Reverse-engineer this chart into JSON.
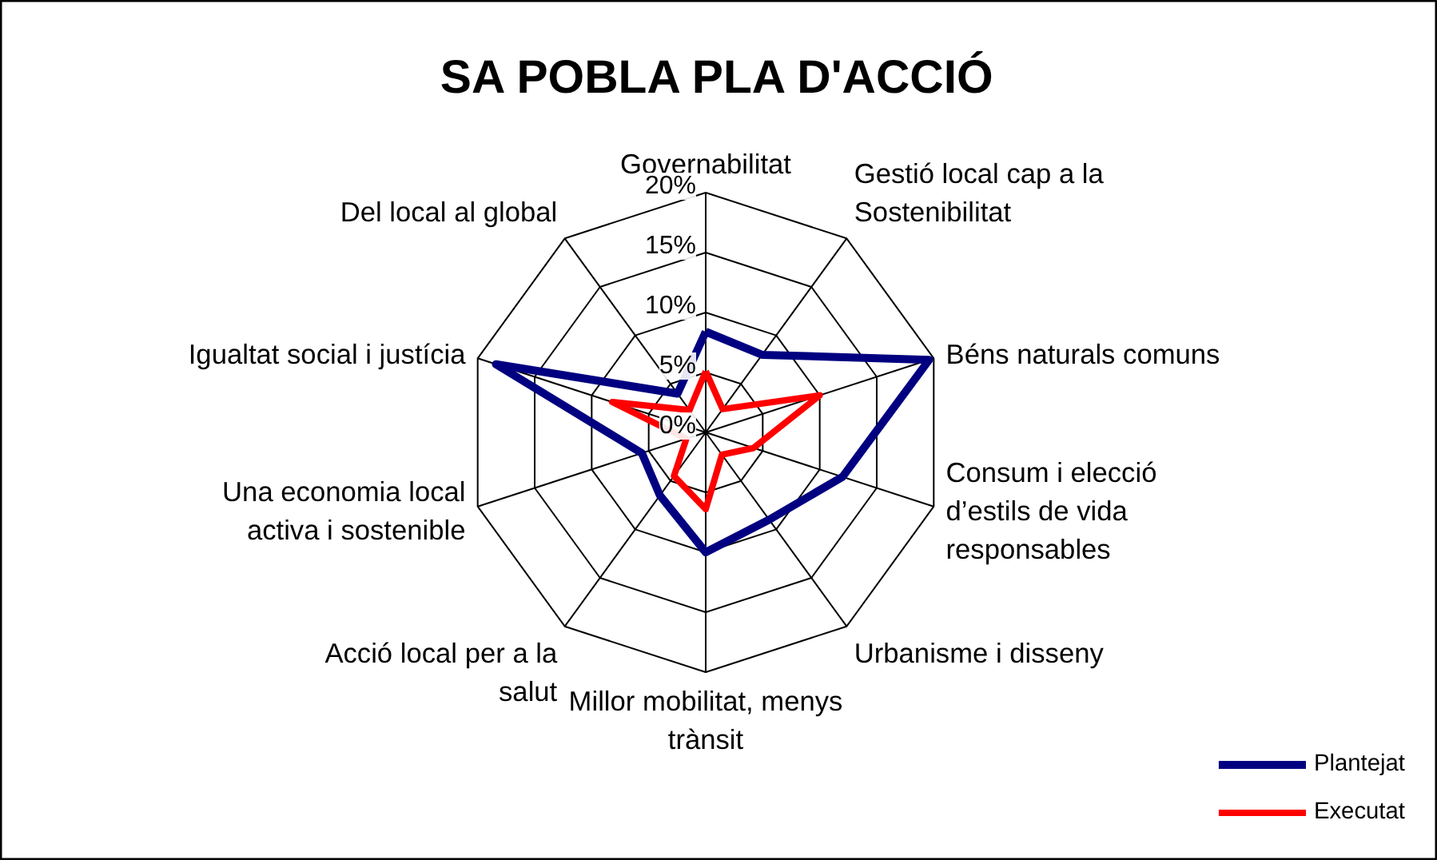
{
  "chart_data": {
    "type": "radar",
    "title": "SA POBLA PLA D'ACCIÓ",
    "categories": [
      "Governabilitat",
      "Gestió local cap a la\nSostenibilitat",
      "Béns naturals comuns",
      "Consum i elecció\nd’estils de vida\nresponsables",
      "Urbanisme i disseny",
      "Millor mobilitat, menys\ntrànsit",
      "Acció local per a la\nsalut",
      "Una economia local\nactiva i sostenible",
      "Igualtat social i justícia",
      "Del local al global"
    ],
    "series": [
      {
        "name": "Plantejat",
        "color": "#000080",
        "values": [
          8.4,
          8,
          19.6,
          12,
          9,
          10,
          6.5,
          5.6,
          18.4,
          4
        ]
      },
      {
        "name": "Executat",
        "color": "#ff0000",
        "values": [
          5.1,
          2.4,
          10,
          4.2,
          2.3,
          6.4,
          4.5,
          1.7,
          8.2,
          2.3
        ]
      }
    ],
    "ylim": [
      0,
      20
    ],
    "yticks": [
      {
        "value": 0,
        "label": "0%"
      },
      {
        "value": 5,
        "label": "5%"
      },
      {
        "value": 10,
        "label": "10%"
      },
      {
        "value": 15,
        "label": "15%"
      },
      {
        "value": 20,
        "label": "20%"
      }
    ],
    "legend": "bottom right"
  }
}
